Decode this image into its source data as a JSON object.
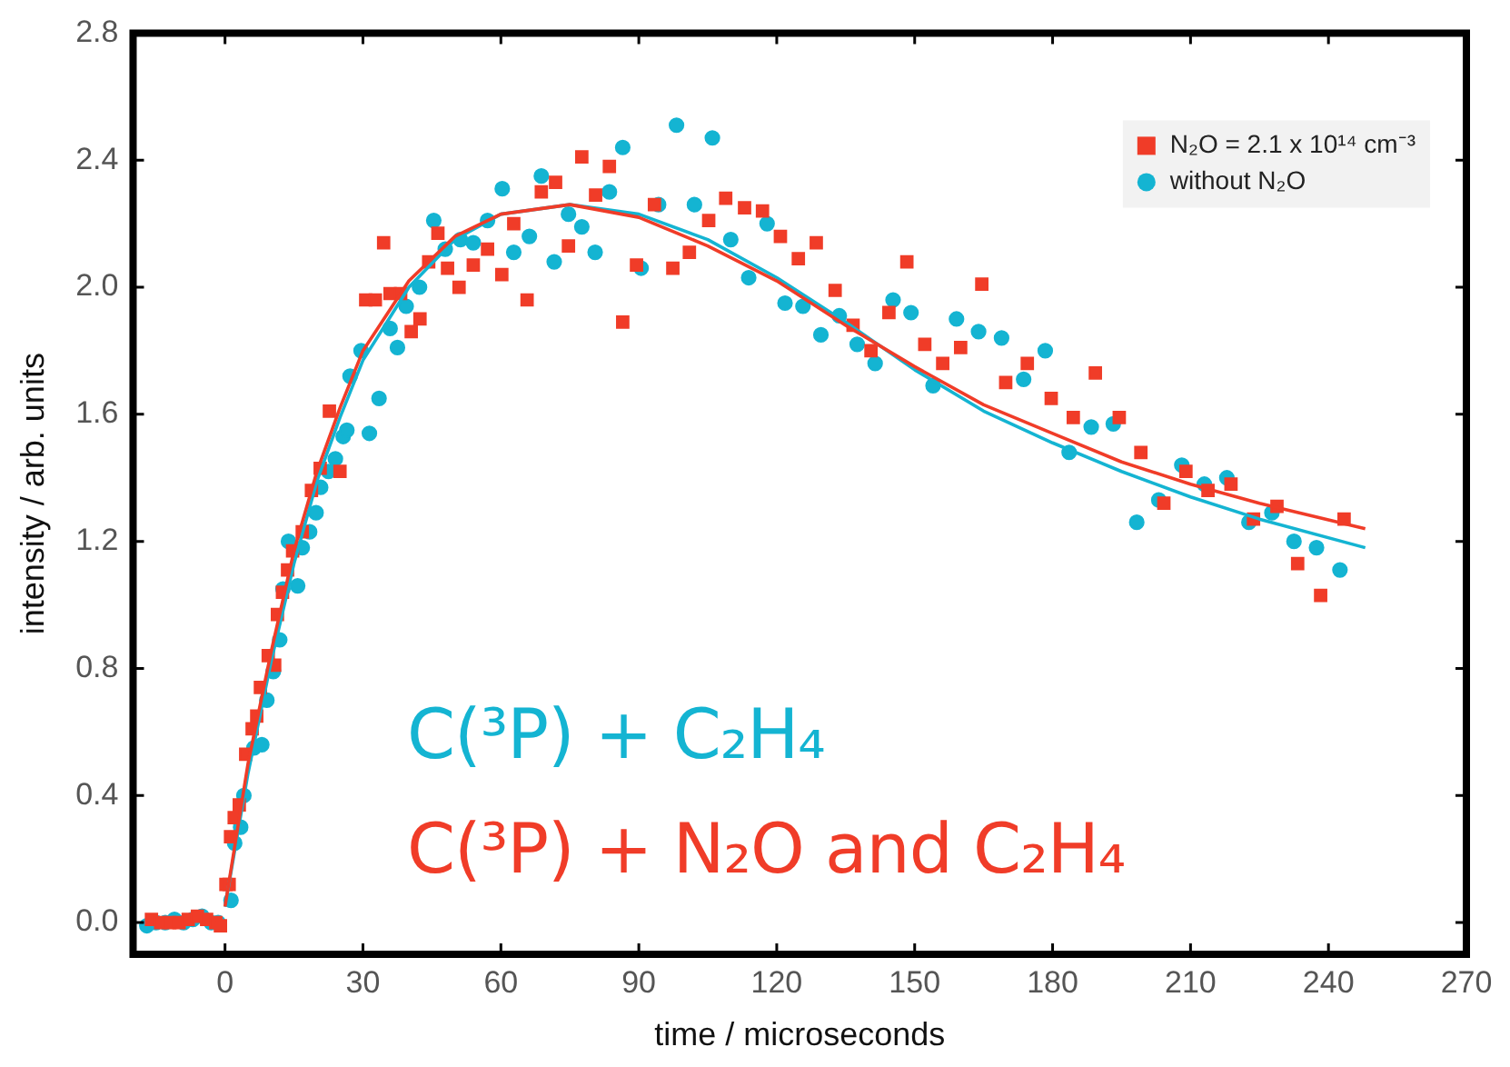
{
  "chart_data": {
    "type": "scatter",
    "xlabel": "time / microseconds",
    "ylabel": "intensity / arb. units",
    "xlim": [
      -20,
      270
    ],
    "xticks": [
      0,
      30,
      60,
      90,
      120,
      150,
      180,
      210,
      240,
      270
    ],
    "ylim": [
      -0.1,
      2.8
    ],
    "yticks": [
      {
        "value": 0,
        "label": "0.0"
      },
      0.4,
      0.8,
      1.2,
      1.6,
      {
        "value": 2,
        "label": "2.0"
      },
      2.4,
      2.8
    ],
    "grid": false,
    "legend": "top right",
    "annotations": [
      "C(³P) + C₂H₄",
      "C(³P) + N₂O and C₂H₄"
    ],
    "series": [
      {
        "name": "N₂O = 2.1 x 10¹⁴ cm⁻³",
        "color": "#f03c28",
        "marker": "square",
        "x": [
          -16,
          -14,
          -12,
          -10,
          -8,
          -6,
          -4,
          -2,
          -1,
          0.2,
          0.9,
          1.2,
          2.0,
          3.1,
          4.5,
          5.9,
          6.9,
          7.7,
          9.4,
          10.8,
          11.4,
          12.5,
          13.6,
          14.7,
          16.8,
          18.8,
          20.7,
          22.7,
          25,
          30.6,
          32.7,
          34.5,
          35.9,
          38.2,
          40.5,
          42.4,
          44.3,
          46.3,
          48.4,
          50.9,
          54,
          57.1,
          60.2,
          62.8,
          65.7,
          68.8,
          71.9,
          74.7,
          77.6,
          80.6,
          83.6,
          86.5,
          89.5,
          93.4,
          97.4,
          101,
          105.2,
          108.9,
          113,
          116.9,
          120.8,
          124.7,
          128.6,
          132.7,
          136.6,
          140.5,
          144.4,
          148.3,
          152.2,
          156.1,
          160,
          164.6,
          169.8,
          174.5,
          179.7,
          184.5,
          189.3,
          194.5,
          199.2,
          204.2,
          209,
          213.8,
          218.8,
          223.7,
          228.8,
          233.3,
          238.3,
          243.4
        ],
        "values": [
          0.01,
          0,
          0,
          0,
          0.01,
          0.02,
          0.01,
          0,
          -0.01,
          0.12,
          0.12,
          0.27,
          0.33,
          0.37,
          0.53,
          0.61,
          0.65,
          0.74,
          0.84,
          0.81,
          0.97,
          1.04,
          1.11,
          1.17,
          1.23,
          1.36,
          1.43,
          1.61,
          1.42,
          1.96,
          1.96,
          2.14,
          1.98,
          1.98,
          1.86,
          1.9,
          2.08,
          2.17,
          2.06,
          2.0,
          2.07,
          2.12,
          2.04,
          2.2,
          1.96,
          2.3,
          2.33,
          2.13,
          2.41,
          2.29,
          2.38,
          1.89,
          2.07,
          2.26,
          2.06,
          2.11,
          2.21,
          2.28,
          2.25,
          2.24,
          2.16,
          2.09,
          2.14,
          1.99,
          1.88,
          1.8,
          1.92,
          2.08,
          1.82,
          1.76,
          1.81,
          2.01,
          1.7,
          1.76,
          1.65,
          1.59,
          1.73,
          1.59,
          1.48,
          1.32,
          1.42,
          1.36,
          1.38,
          1.27,
          1.31,
          1.13,
          1.03,
          1.27
        ]
      },
      {
        "name": "without N₂O",
        "color": "#14b4d2",
        "marker": "circle",
        "x": [
          -17,
          -15,
          -13,
          -11,
          -9,
          -7,
          -5,
          -3,
          -1.5,
          1.3,
          2.1,
          3.4,
          4.1,
          6.3,
          8,
          9.1,
          10.5,
          11.9,
          12.6,
          13.8,
          15.8,
          16.8,
          18.4,
          19.8,
          20.8,
          22.5,
          24,
          25.7,
          26.5,
          27.2,
          29.6,
          31.4,
          33.5,
          35.9,
          37.5,
          39.4,
          42.3,
          45.4,
          47.9,
          51.2,
          54,
          57.1,
          60.3,
          62.8,
          66.2,
          68.8,
          71.6,
          74.7,
          77.6,
          80.5,
          83.6,
          86.5,
          90.5,
          94.3,
          98.2,
          102.1,
          106,
          110,
          113.9,
          117.9,
          121.8,
          125.7,
          129.6,
          133.6,
          137.5,
          141.4,
          145.3,
          149.2,
          154,
          159.1,
          163.9,
          168.9,
          173.7,
          178.4,
          183.6,
          188.4,
          193.2,
          198.3,
          203.1,
          208.1,
          213,
          217.9,
          222.7,
          227.7,
          232.5,
          237.4,
          242.5
        ],
        "values": [
          -0.01,
          0,
          0,
          0.01,
          0,
          0.01,
          0.02,
          0,
          0,
          0.07,
          0.25,
          0.3,
          0.4,
          0.55,
          0.56,
          0.7,
          0.79,
          0.89,
          1.05,
          1.2,
          1.06,
          1.18,
          1.23,
          1.29,
          1.37,
          1.42,
          1.46,
          1.53,
          1.55,
          1.72,
          1.8,
          1.54,
          1.65,
          1.87,
          1.81,
          1.94,
          2.0,
          2.21,
          2.12,
          2.15,
          2.14,
          2.21,
          2.31,
          2.11,
          2.16,
          2.35,
          2.08,
          2.23,
          2.19,
          2.11,
          2.3,
          2.44,
          2.06,
          2.26,
          2.51,
          2.26,
          2.47,
          2.15,
          2.03,
          2.2,
          1.95,
          1.94,
          1.85,
          1.91,
          1.82,
          1.76,
          1.96,
          1.92,
          1.69,
          1.9,
          1.86,
          1.84,
          1.71,
          1.8,
          1.48,
          1.56,
          1.57,
          1.26,
          1.33,
          1.44,
          1.38,
          1.4,
          1.26,
          1.29,
          1.2,
          1.18,
          1.11
        ]
      },
      {
        "type": "line",
        "color": "#f03c28",
        "marker": "none",
        "line_style": "solid",
        "x": [
          0,
          5,
          10,
          15,
          20,
          25,
          30,
          40,
          50,
          60,
          75,
          90,
          105,
          120,
          135,
          150,
          165,
          180,
          195,
          210,
          225,
          248
        ],
        "values": [
          0.05,
          0.5,
          0.85,
          1.17,
          1.42,
          1.62,
          1.8,
          2.02,
          2.16,
          2.23,
          2.26,
          2.22,
          2.13,
          2.02,
          1.88,
          1.75,
          1.63,
          1.54,
          1.45,
          1.38,
          1.32,
          1.24
        ]
      },
      {
        "type": "line",
        "color": "#14b4d2",
        "marker": "none",
        "line_style": "solid",
        "x": [
          0,
          5,
          10,
          15,
          20,
          25,
          30,
          40,
          50,
          60,
          75,
          90,
          105,
          120,
          135,
          150,
          165,
          180,
          195,
          210,
          225,
          248
        ],
        "values": [
          0.05,
          0.47,
          0.82,
          1.13,
          1.39,
          1.59,
          1.77,
          2.0,
          2.15,
          2.23,
          2.26,
          2.23,
          2.15,
          2.03,
          1.89,
          1.74,
          1.61,
          1.51,
          1.42,
          1.34,
          1.27,
          1.18
        ]
      }
    ]
  }
}
